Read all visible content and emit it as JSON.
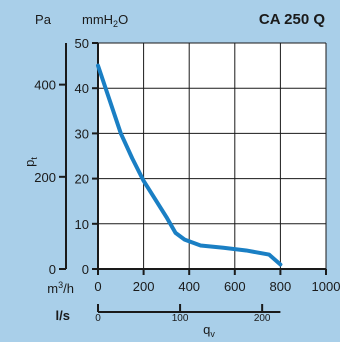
{
  "colors": {
    "background": "#a9cfe9",
    "plot_area": "#ffffff",
    "curve": "#1a7fc4",
    "axis": "#1a1a1a",
    "grid": "#1a1a1a"
  },
  "chart_data": {
    "type": "line",
    "title": "CA 250 Q",
    "x": {
      "label": "q",
      "label_subscript": "v",
      "unit_primary": "m³/h",
      "unit_primary_base": "m",
      "unit_primary_sup": "3",
      "unit_primary_rest": "/h",
      "range": [
        0,
        1000
      ],
      "ticks": [
        0,
        200,
        400,
        600,
        800,
        1000
      ],
      "unit_secondary": "l/s",
      "secondary_ticks": [
        0,
        100,
        200
      ],
      "secondary_per_primary": 0.27778
    },
    "y": {
      "label": "p",
      "label_subscript": "t",
      "unit_primary": "mmH₂O",
      "unit_primary_base": "mmH",
      "unit_primary_sub": "2",
      "unit_primary_rest": "O",
      "range": [
        0,
        50
      ],
      "ticks": [
        0,
        10,
        20,
        30,
        40,
        50
      ],
      "unit_secondary": "Pa",
      "secondary_ticks": [
        0,
        200,
        400
      ],
      "secondary_per_primary": 9.80665
    },
    "grid": true,
    "series": [
      {
        "x": [
          0,
          50,
          100,
          150,
          200,
          250,
          300,
          340,
          380,
          450,
          550,
          650,
          750,
          800
        ],
        "y": [
          45,
          37.5,
          30,
          24.5,
          19.5,
          15.5,
          11.5,
          8,
          6.5,
          5.2,
          4.7,
          4.1,
          3.2,
          1
        ]
      }
    ]
  }
}
